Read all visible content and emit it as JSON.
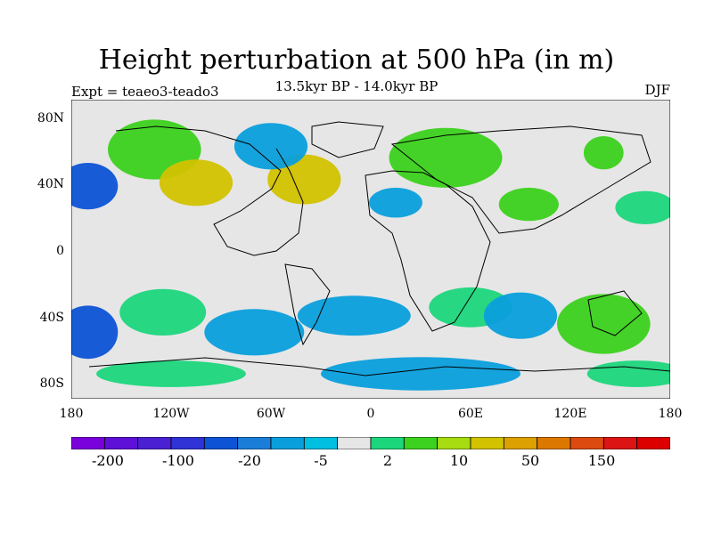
{
  "title": "Height perturbation at 500 hPa (in m)",
  "subtitle": "13.5kyr BP - 14.0kyr BP",
  "experiment": "Expt = teaeo3-teado3",
  "season": "DJF",
  "lat_labels": [
    "80N",
    "40N",
    "0",
    "40S",
    "80S"
  ],
  "lon_labels": [
    "180",
    "120W",
    "60W",
    "0",
    "60E",
    "120E",
    "180"
  ],
  "colorbar": {
    "colors": [
      "#7a00dc",
      "#5f10d7",
      "#4a20d2",
      "#2f32d5",
      "#0d53d6",
      "#1a7ed8",
      "#0a9fdc",
      "#00bfe0",
      "#e6e6e6",
      "#1cd67c",
      "#3cd11e",
      "#a6dc10",
      "#d2c200",
      "#dca000",
      "#dc7800",
      "#dc4a10",
      "#dc1414",
      "#dc0000"
    ],
    "labels": [
      "-200",
      "-100",
      "-20",
      "-5",
      "2",
      "10",
      "50",
      "150"
    ]
  },
  "field_blobs": [
    {
      "lon": -130,
      "lat": 60,
      "rx": 28,
      "ry": 18,
      "level": 10
    },
    {
      "lon": -105,
      "lat": 40,
      "rx": 22,
      "ry": 14,
      "level": 50
    },
    {
      "lon": -170,
      "lat": 38,
      "rx": 18,
      "ry": 14,
      "level": -20
    },
    {
      "lon": -40,
      "lat": 42,
      "rx": 22,
      "ry": 15,
      "level": 50
    },
    {
      "lon": -60,
      "lat": 62,
      "rx": 22,
      "ry": 14,
      "level": -5
    },
    {
      "lon": 45,
      "lat": 55,
      "rx": 34,
      "ry": 18,
      "level": 10
    },
    {
      "lon": 95,
      "lat": 27,
      "rx": 18,
      "ry": 10,
      "level": 10
    },
    {
      "lon": 140,
      "lat": 58,
      "rx": 12,
      "ry": 10,
      "level": 10
    },
    {
      "lon": 165,
      "lat": 25,
      "rx": 18,
      "ry": 10,
      "level": 5
    },
    {
      "lon": 15,
      "lat": 28,
      "rx": 16,
      "ry": 9,
      "level": -5
    },
    {
      "lon": -125,
      "lat": -38,
      "rx": 26,
      "ry": 14,
      "level": 5
    },
    {
      "lon": -170,
      "lat": -50,
      "rx": 18,
      "ry": 16,
      "level": -20
    },
    {
      "lon": -70,
      "lat": -50,
      "rx": 30,
      "ry": 14,
      "level": -5
    },
    {
      "lon": -10,
      "lat": -40,
      "rx": 34,
      "ry": 12,
      "level": -5
    },
    {
      "lon": 60,
      "lat": -35,
      "rx": 25,
      "ry": 12,
      "level": 5
    },
    {
      "lon": 140,
      "lat": -45,
      "rx": 28,
      "ry": 18,
      "level": 10
    },
    {
      "lon": 90,
      "lat": -40,
      "rx": 22,
      "ry": 14,
      "level": -5
    },
    {
      "lon": 30,
      "lat": -75,
      "rx": 60,
      "ry": 10,
      "level": -5
    },
    {
      "lon": -120,
      "lat": -75,
      "rx": 45,
      "ry": 8,
      "level": 5
    },
    {
      "lon": 160,
      "lat": -75,
      "rx": 30,
      "ry": 8,
      "level": 5
    }
  ]
}
